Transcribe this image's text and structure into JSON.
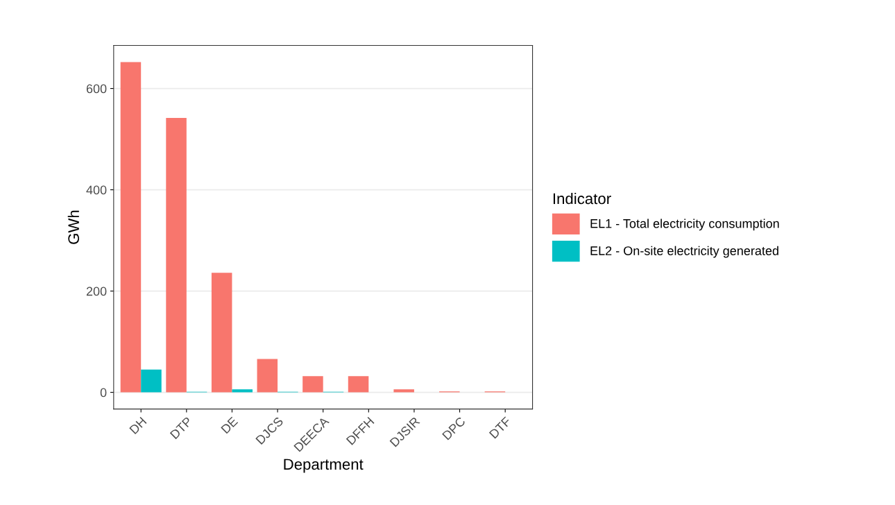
{
  "chart_data": {
    "type": "bar",
    "xlabel": "Department",
    "ylabel": "GWh",
    "legend_title": "Indicator",
    "categories": [
      "DH",
      "DTP",
      "DE",
      "DJCS",
      "DEECA",
      "DFFH",
      "DJSIR",
      "DPC",
      "DTF"
    ],
    "series": [
      {
        "name": "EL1 - Total electricity consumption",
        "color": "#f8766d",
        "values": [
          652,
          542,
          236,
          66,
          32,
          32,
          6,
          2,
          2
        ]
      },
      {
        "name": "EL2 - On-site electricity generated",
        "color": "#00bfc4",
        "values": [
          45,
          1,
          6,
          1,
          1,
          0,
          0,
          0,
          0
        ]
      }
    ],
    "ylim": [
      -33,
      685
    ],
    "yticks": [
      0,
      200,
      400,
      600
    ],
    "grid": "y",
    "legend": "right"
  }
}
